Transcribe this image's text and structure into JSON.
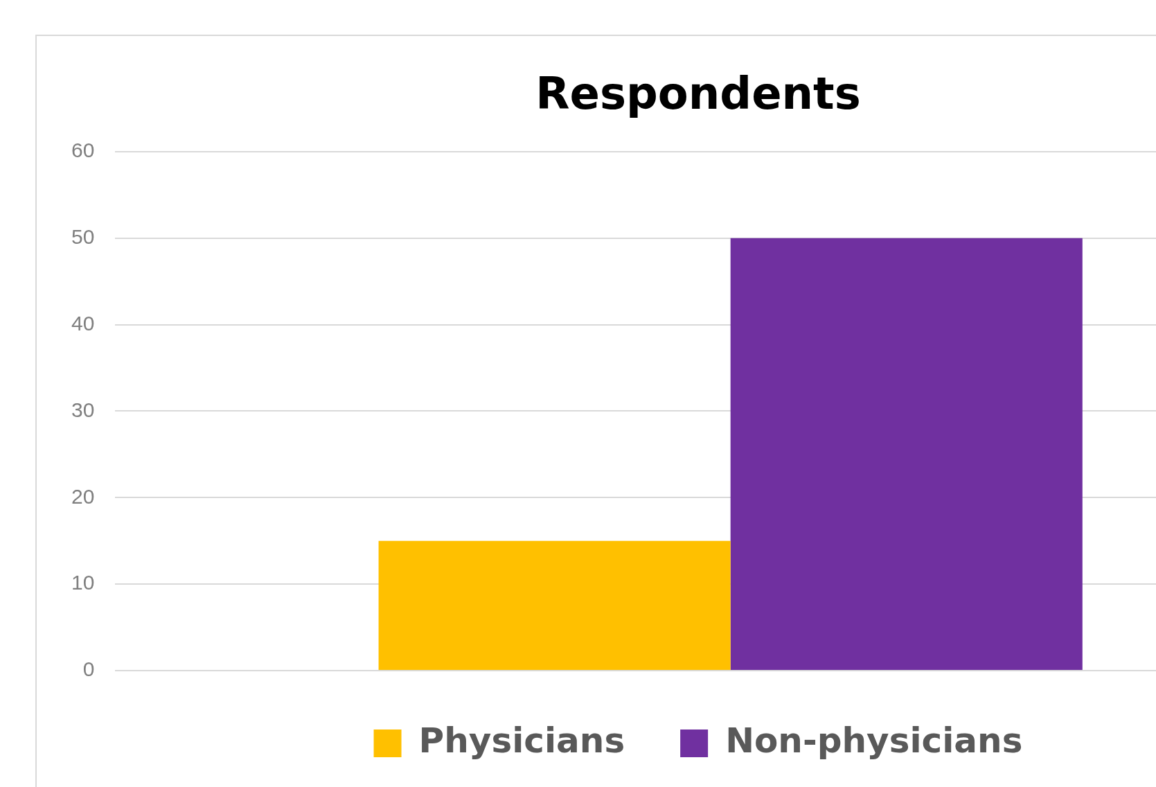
{
  "chart_data": {
    "type": "bar",
    "title": "Respondents",
    "categories": [
      null
    ],
    "series": [
      {
        "name": "Physicians",
        "color": "#ffc000",
        "values": [
          15
        ]
      },
      {
        "name": "Non-physicians",
        "color": "#7030a0",
        "values": [
          50
        ]
      }
    ],
    "ylim": [
      0,
      60
    ],
    "yticks": [
      0,
      10,
      20,
      30,
      40,
      50,
      60
    ],
    "grid": "y",
    "legend": "bottom",
    "tick_labels": "y"
  }
}
